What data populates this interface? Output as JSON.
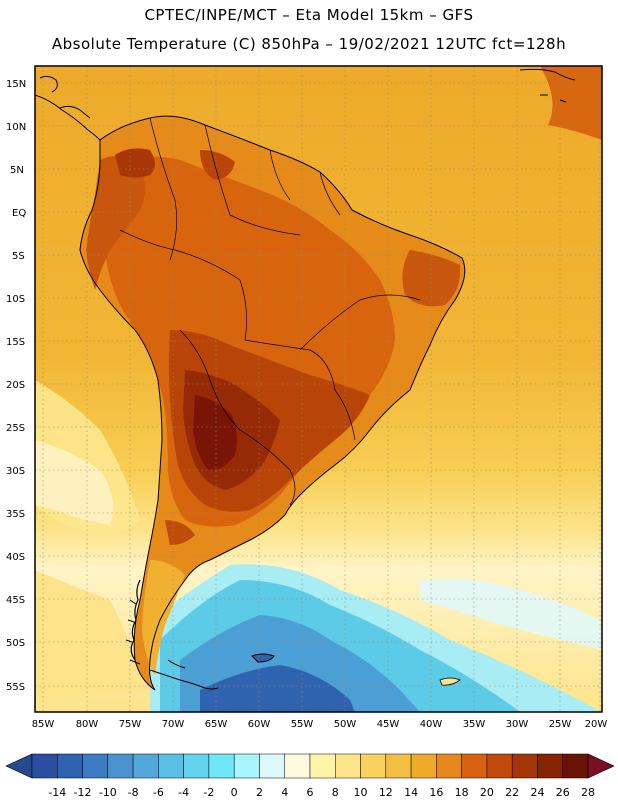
{
  "header": {
    "line1": "CPTEC/INPE/MCT –  Eta Model 15km – GFS",
    "line2": "Absolute Temperature (C) 850hPa – 19/02/2021 12UTC fct=128h"
  },
  "latitude_labels": [
    "15N",
    "10N",
    "5N",
    "EQ",
    "5S",
    "10S",
    "15S",
    "20S",
    "25S",
    "30S",
    "35S",
    "40S",
    "45S",
    "50S",
    "55S"
  ],
  "longitude_labels": [
    "85W",
    "80W",
    "75W",
    "70W",
    "65W",
    "60W",
    "55W",
    "50W",
    "45W",
    "40W",
    "35W",
    "30W",
    "25W",
    "20W"
  ],
  "colorbar": {
    "labels": [
      "-14",
      "-12",
      "-10",
      "-8",
      "-6",
      "-4",
      "-2",
      "0",
      "2",
      "4",
      "6",
      "8",
      "10",
      "12",
      "14",
      "16",
      "18",
      "20",
      "22",
      "24",
      "26",
      "28"
    ],
    "colors": [
      "#2a4ea0",
      "#2f63b0",
      "#3b7cc2",
      "#4b93cf",
      "#52a8da",
      "#5ac0e6",
      "#62d4ee",
      "#6ee8f6",
      "#a6f6fb",
      "#dcf8fb",
      "#fff9e0",
      "#fff4a8",
      "#fde68a",
      "#f8d25c",
      "#f2bf42",
      "#eeab2a",
      "#e8871a",
      "#d8600e",
      "#c24a0a",
      "#a43506",
      "#862404",
      "#6a1408"
    ],
    "low_color": "#27498f",
    "high_color": "#7a0e22"
  },
  "palette": {
    "ocean_warm": "#f2b435",
    "ocean_mid": "#f7cf55",
    "ocean_cool": "#fde58c",
    "cold_south": "#55b6de",
    "land_hot": "#c8520c",
    "land_hottest": "#8a1e06",
    "coast": "#000000"
  }
}
